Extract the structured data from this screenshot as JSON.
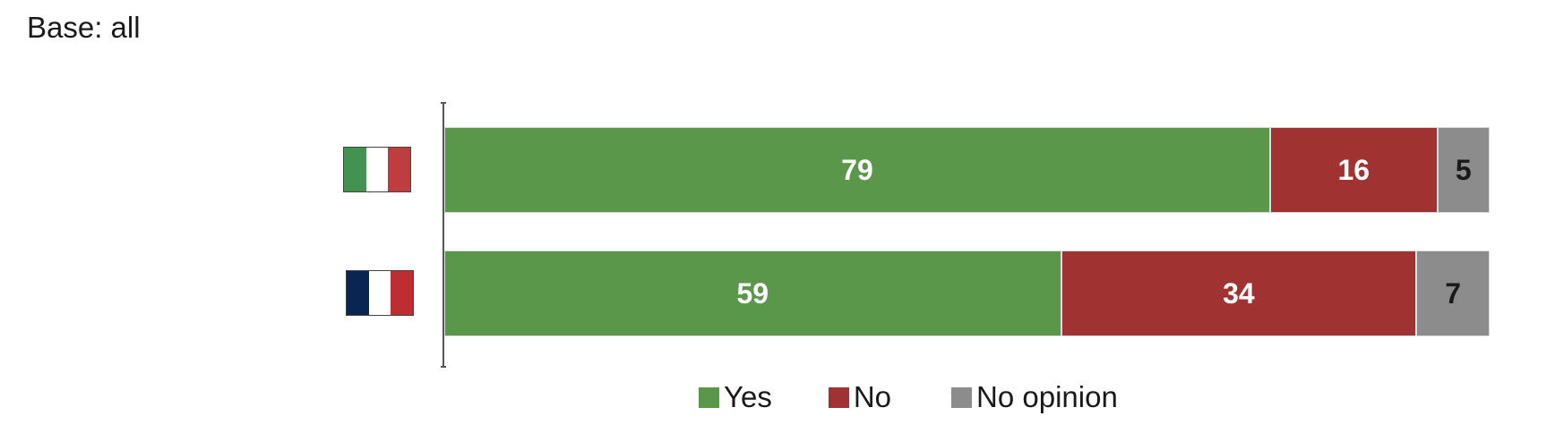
{
  "title": "Base: all",
  "chart_data": {
    "type": "bar",
    "orientation": "horizontal",
    "stacked": true,
    "categories": [
      "Italy",
      "France"
    ],
    "category_icons": [
      "italy-flag",
      "france-flag"
    ],
    "series": [
      {
        "name": "Yes",
        "values": [
          79,
          59
        ],
        "color": "#5a974a",
        "label_color": "#ffffff"
      },
      {
        "name": "No",
        "values": [
          16,
          34
        ],
        "color": "#a03331",
        "label_color": "#ffffff"
      },
      {
        "name": "No opinion",
        "values": [
          5,
          7
        ],
        "color": "#8c8c8c",
        "label_color": "#1a1a1a"
      }
    ],
    "xlim": [
      0,
      100
    ],
    "grid": false,
    "legend_position": "bottom"
  }
}
